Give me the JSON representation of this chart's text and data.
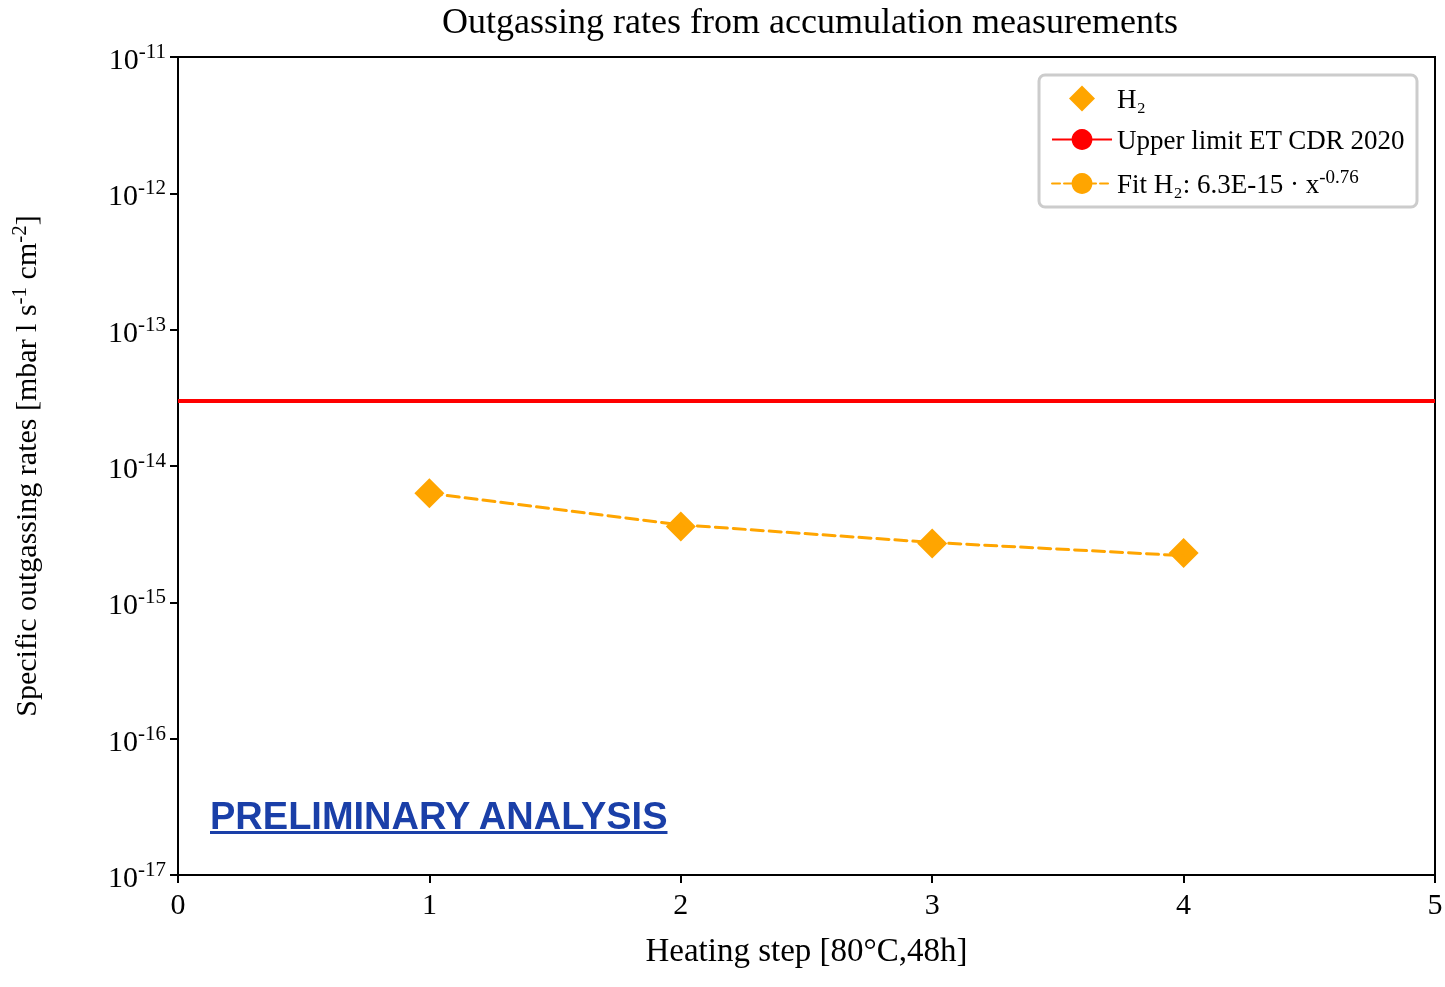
{
  "chart_data": {
    "type": "scatter",
    "title": "Outgassing rates from accumulation measurements",
    "xlabel": "Heating step [80°C,48h]",
    "ylabel": "Specific outgassing rates [mbar l s$^{-1}$ cm$^{-2}$]",
    "log": "y",
    "grid": false,
    "legend": "top right",
    "xlim": [
      0,
      5
    ],
    "xticks": [
      0,
      1,
      2,
      3,
      4,
      5
    ],
    "ylim": [
      1e-17,
      1e-11
    ],
    "yticks": [
      {
        "value": 1e-17,
        "label": "10$^{-17}$"
      },
      {
        "value": 1e-16,
        "label": "10$^{-16}$"
      },
      {
        "value": 1e-15,
        "label": "10$^{-15}$"
      },
      {
        "value": 1e-14,
        "label": "10$^{-14}$"
      },
      {
        "value": 1e-13,
        "label": "10$^{-13}$"
      },
      {
        "value": 1e-12,
        "label": "10$^{-12}$"
      },
      {
        "value": 1e-11,
        "label": "10$^{-11}$"
      }
    ],
    "series": [
      {
        "name": "H₂",
        "marker": "diamond",
        "color": "#ffa500",
        "x": [
          1,
          2,
          3,
          4
        ],
        "values": [
          6.3e-15,
          3.6e-15,
          2.7e-15,
          2.3e-15
        ]
      },
      {
        "name": "Fit H₂: 6.3E-15 · x$^{-0.76}$",
        "type": "line",
        "marker": "none",
        "line_style": "dashed",
        "color": "#ffa500",
        "x": [
          1,
          2,
          3,
          4
        ],
        "values": [
          6.3e-15,
          3.7e-15,
          2.75e-15,
          2.2e-15
        ]
      }
    ],
    "ref_lines": [
      {
        "axis": "y",
        "value": 3e-14,
        "label": "Upper limit ET CDR 2020",
        "color": "#ff0000",
        "line_style": "solid"
      }
    ],
    "annotations": [
      "PRELIMINARY ANALYSIS"
    ]
  }
}
